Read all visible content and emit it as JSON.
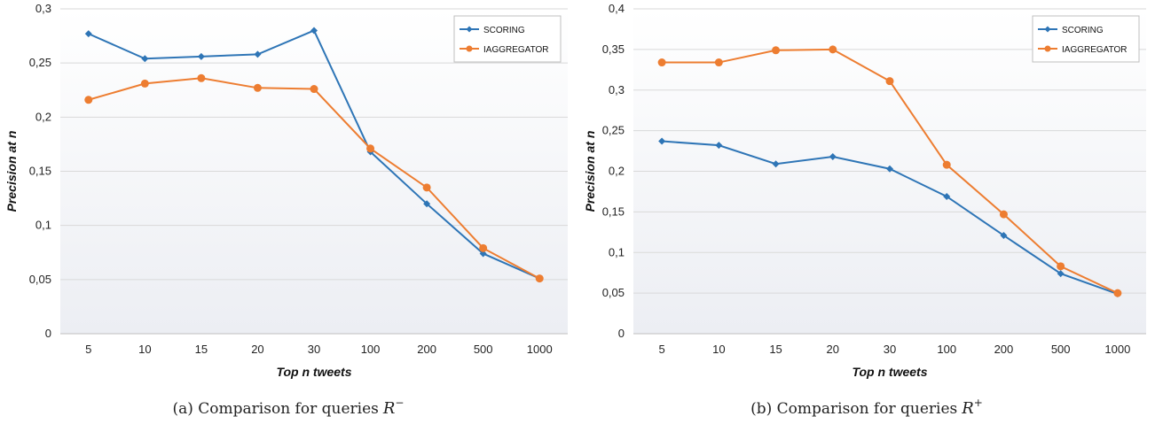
{
  "chart_data": [
    {
      "type": "line",
      "categories": [
        "5",
        "10",
        "15",
        "20",
        "30",
        "100",
        "200",
        "500",
        "1000"
      ],
      "series": [
        {
          "name": "SCORING",
          "color": "#2e75b6",
          "marker": "diamond",
          "values": [
            0.277,
            0.254,
            0.256,
            0.258,
            0.28,
            0.168,
            0.12,
            0.074,
            0.051
          ]
        },
        {
          "name": "IAGGREGATOR",
          "color": "#ed7d31",
          "marker": "circle",
          "values": [
            0.216,
            0.231,
            0.236,
            0.227,
            0.226,
            0.171,
            0.135,
            0.079,
            0.051
          ]
        }
      ],
      "xlabel": "Top n tweets",
      "ylabel": "Precision at n",
      "ylim": [
        0,
        0.3
      ],
      "yticks": [
        "0",
        "0,05",
        "0,1",
        "0,15",
        "0,2",
        "0,25",
        "0,3"
      ],
      "grid": true,
      "legend_position": "top-right",
      "caption": "(a) Comparison for queries",
      "caption_symbol": "R",
      "caption_sup": "−"
    },
    {
      "type": "line",
      "categories": [
        "5",
        "10",
        "15",
        "20",
        "30",
        "100",
        "200",
        "500",
        "1000"
      ],
      "series": [
        {
          "name": "SCORING",
          "color": "#2e75b6",
          "marker": "diamond",
          "values": [
            0.237,
            0.232,
            0.209,
            0.218,
            0.203,
            0.169,
            0.121,
            0.074,
            0.049
          ]
        },
        {
          "name": "IAGGREGATOR",
          "color": "#ed7d31",
          "marker": "circle",
          "values": [
            0.334,
            0.334,
            0.349,
            0.35,
            0.311,
            0.208,
            0.147,
            0.083,
            0.05
          ]
        }
      ],
      "xlabel": "Top n tweets",
      "ylabel": "Precision at n",
      "ylim": [
        0,
        0.4
      ],
      "yticks": [
        "0",
        "0,05",
        "0,1",
        "0,15",
        "0,2",
        "0,25",
        "0,3",
        "0,35",
        "0,4"
      ],
      "grid": true,
      "legend_position": "top-right",
      "caption": "(b) Comparison for queries",
      "caption_symbol": "R",
      "caption_sup": "+"
    }
  ]
}
